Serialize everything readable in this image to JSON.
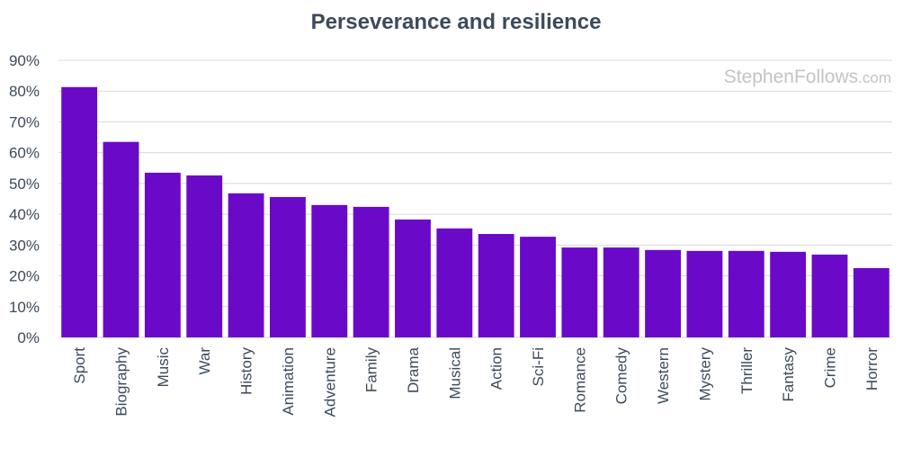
{
  "chart_data": {
    "type": "bar",
    "title": "Perseverance and resilience",
    "watermark": {
      "main": "StephenFollows",
      "suffix": ".com"
    },
    "xlabel": "",
    "ylabel": "",
    "ylim": [
      0,
      90
    ],
    "yticks": [
      "0%",
      "10%",
      "20%",
      "30%",
      "40%",
      "50%",
      "60%",
      "70%",
      "80%",
      "90%"
    ],
    "grid": true,
    "bar_color": "#6a0ac8",
    "categories": [
      "Sport",
      "Biography",
      "Music",
      "War",
      "History",
      "Animation",
      "Adventure",
      "Family",
      "Drama",
      "Musical",
      "Action",
      "Sci-Fi",
      "Romance",
      "Comedy",
      "Western",
      "Mystery",
      "Thriller",
      "Fantasy",
      "Crime",
      "Horror"
    ],
    "values": [
      81.3,
      63.5,
      53.5,
      52.6,
      46.8,
      45.6,
      43.0,
      42.4,
      38.3,
      35.4,
      33.6,
      32.7,
      29.2,
      29.2,
      28.4,
      28.1,
      28.1,
      27.8,
      26.9,
      22.5
    ]
  }
}
